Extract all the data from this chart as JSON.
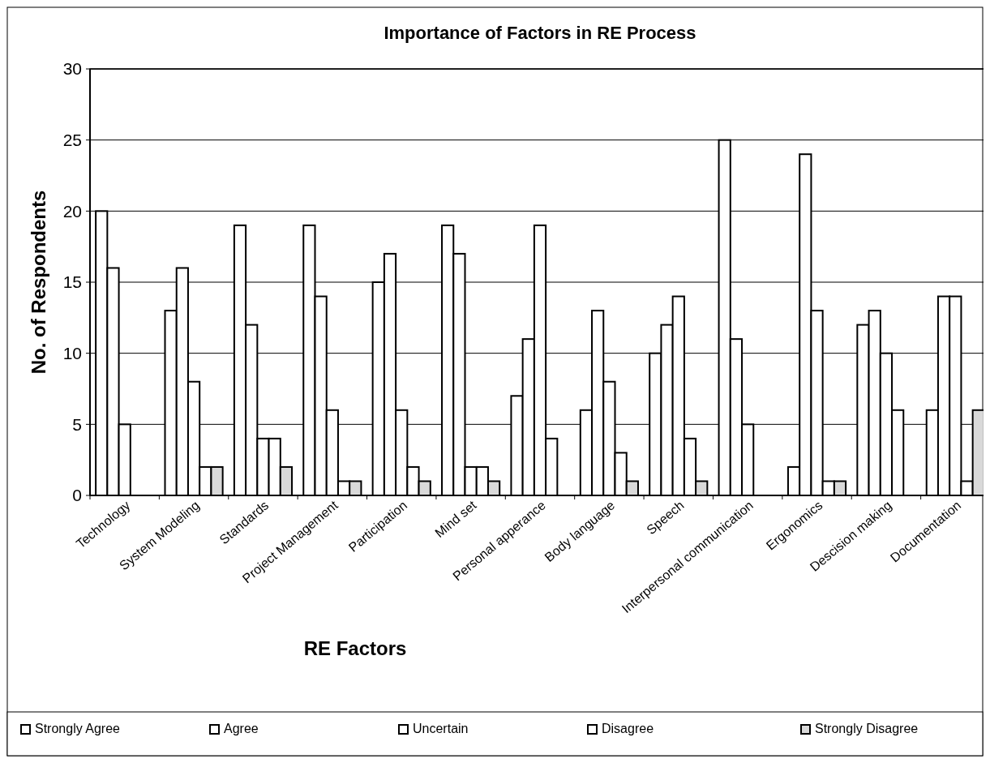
{
  "chart_data": {
    "type": "bar",
    "title": "Importance of Factors in RE Process",
    "xlabel": "RE Factors",
    "ylabel": "No. of Respondents",
    "categories": [
      "Technology",
      "System Modeling",
      "Standards",
      "Project Management",
      "Participation",
      "Mind set",
      "Personal apperance",
      "Body language",
      "Speech",
      "Interpersonal communication",
      "Ergonomics",
      "Descision making",
      "Documentation"
    ],
    "series": [
      {
        "name": "Strongly Agree",
        "color": "#ffffff",
        "values": [
          20,
          13,
          19,
          19,
          15,
          19,
          7,
          6,
          10,
          25,
          2,
          12,
          6
        ]
      },
      {
        "name": "Agree",
        "color": "#ffffff",
        "values": [
          16,
          16,
          12,
          14,
          17,
          17,
          11,
          13,
          12,
          11,
          24,
          13,
          14
        ]
      },
      {
        "name": "Uncertain",
        "color": "#ffffff",
        "values": [
          5,
          8,
          4,
          6,
          6,
          2,
          19,
          8,
          14,
          5,
          13,
          10,
          14
        ]
      },
      {
        "name": "Disagree",
        "color": "#ffffff",
        "values": [
          0,
          2,
          4,
          1,
          2,
          2,
          4,
          3,
          4,
          0,
          1,
          6,
          1
        ]
      },
      {
        "name": "Strongly Disagree",
        "color": "#d9d9d9",
        "values": [
          0,
          2,
          2,
          1,
          1,
          1,
          0,
          1,
          1,
          0,
          1,
          0,
          6
        ]
      }
    ],
    "ylim": [
      0,
      30
    ],
    "yticks": [
      0,
      5,
      10,
      15,
      20,
      25,
      30
    ],
    "grid": "y",
    "legend": "bottom"
  }
}
